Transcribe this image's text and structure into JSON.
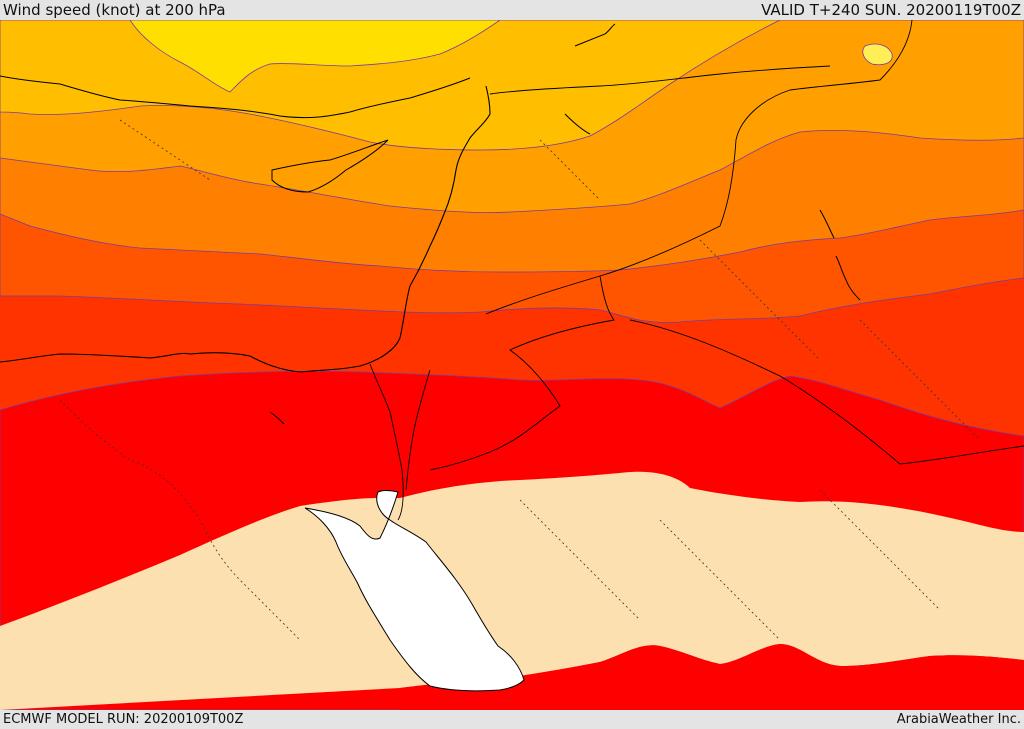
{
  "header": {
    "title": "Wind speed (knot) at 200 hPa",
    "valid": "VALID T+240 SUN. 20200119T00Z"
  },
  "footer": {
    "model_run": "ECMWF MODEL RUN: 20200109T00Z",
    "credit": "ArabiaWeather Inc."
  },
  "map": {
    "variable": "wind speed",
    "level": "200 hPa",
    "palette": {
      "band_low_yellow": "#ffdf00",
      "band_yellow_orange": "#ffbf00",
      "band_orange": "#ff9f00",
      "band_dark_orange": "#ff7f00",
      "band_red_orange": "#ff5500",
      "band_orange_red": "#ff3300",
      "band_red": "#ff0000",
      "band_max": "#fde0b0",
      "sea": "#ffffff",
      "coastline": "#000000"
    }
  }
}
